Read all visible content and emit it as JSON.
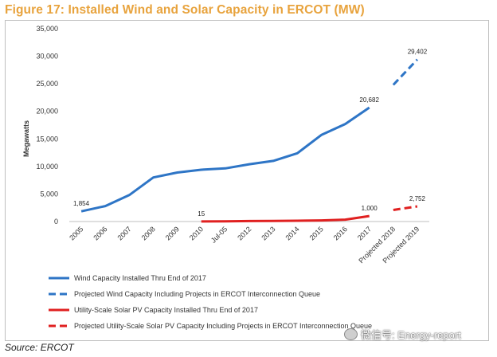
{
  "chart_data": {
    "type": "line",
    "title": "Figure 17: Installed Wind and Solar Capacity in ERCOT (MW)",
    "ylabel": "Megawatts",
    "xlabel": "",
    "ylim": [
      0,
      35000
    ],
    "yticks": [
      0,
      5000,
      10000,
      15000,
      20000,
      25000,
      30000,
      35000
    ],
    "ytick_labels": [
      "0",
      "5,000",
      "10,000",
      "15,000",
      "20,000",
      "25,000",
      "30,000",
      "35,000"
    ],
    "categories": [
      "2005",
      "2006",
      "2007",
      "2008",
      "2009",
      "2010",
      "Jul-05",
      "2012",
      "2013",
      "2014",
      "2015",
      "2016",
      "2017",
      "Projected 2018",
      "Projected 2019"
    ],
    "grid": false,
    "legend_position": "bottom",
    "series": [
      {
        "name": "Wind Capacity Installed Thru End of 2017",
        "color": "#2E75C6",
        "style": "solid",
        "values": [
          1854,
          2800,
          4800,
          8000,
          8900,
          9400,
          9650,
          10400,
          11000,
          12400,
          15700,
          17700,
          20682,
          null,
          null
        ]
      },
      {
        "name": "Projected Wind Capacity Including Projects in ERCOT Interconnection Queue",
        "color": "#2E75C6",
        "style": "dashed",
        "values": [
          null,
          null,
          null,
          null,
          null,
          null,
          null,
          null,
          null,
          null,
          null,
          null,
          null,
          24800,
          29402
        ]
      },
      {
        "name": "Utility-Scale Solar PV Capacity Installed Thru End of 2017",
        "color": "#E02020",
        "style": "solid",
        "values": [
          null,
          null,
          null,
          null,
          null,
          15,
          30,
          90,
          110,
          150,
          200,
          350,
          1000,
          null,
          null
        ]
      },
      {
        "name": "Projected Utility-Scale Solar PV Capacity Including Projects in ERCOT Interconnection Queue",
        "color": "#E02020",
        "style": "dashed",
        "values": [
          null,
          null,
          null,
          null,
          null,
          null,
          null,
          null,
          null,
          null,
          null,
          null,
          null,
          2100,
          2752
        ]
      }
    ],
    "data_labels": [
      {
        "series": 0,
        "index": 0,
        "text": "1,854"
      },
      {
        "series": 0,
        "index": 12,
        "text": "20,682"
      },
      {
        "series": 1,
        "index": 14,
        "text": "29,402"
      },
      {
        "series": 2,
        "index": 5,
        "text": "15"
      },
      {
        "series": 2,
        "index": 12,
        "text": "1,000"
      },
      {
        "series": 3,
        "index": 14,
        "text": "2,752"
      }
    ]
  },
  "source": "Source: ERCOT",
  "watermark": "微信号: Energy-report"
}
